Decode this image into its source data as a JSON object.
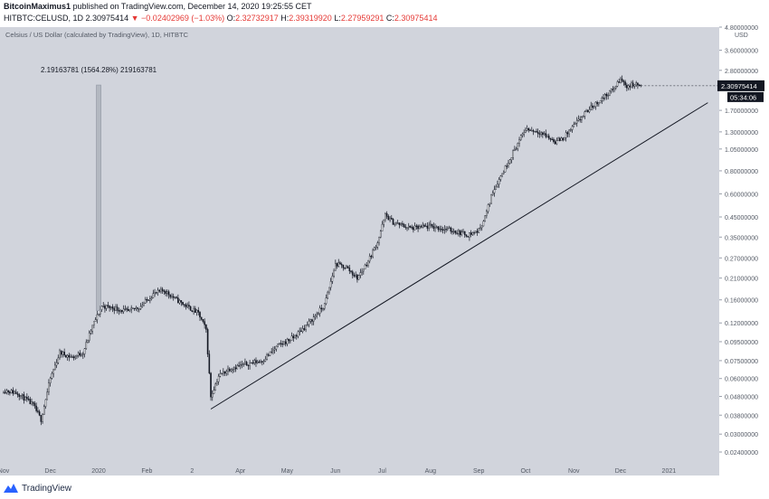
{
  "header": {
    "publisher": "BitcoinMaximus1",
    "published_text": "published on TradingView.com, December 14, 2020 19:25:55 CET",
    "symbol": "HITBTC:CELUSD, 1D",
    "last": "2.30975414",
    "change": "−0.02402969 (−1.03%)",
    "ohlc": {
      "o_label": "O:",
      "o": "2.32732917",
      "h_label": "H:",
      "h": "2.39319920",
      "l_label": "L:",
      "l": "2.27959291",
      "c_label": "C:",
      "c": "2.30975414"
    }
  },
  "colors": {
    "plot_bg": "#d1d4dc",
    "candle": "#131722",
    "trendline": "#131722",
    "measure": "#9aa0ac",
    "price_tag_bg": "#131722",
    "header_red": "#e53935"
  },
  "chart_data": {
    "type": "candlestick",
    "title": "Celsius / US Dollar (calculated by TradingView), 1D, HITBTC",
    "y_scale": "log",
    "ylim": [
      0.0205,
      4.8
    ],
    "y_unit": "USD",
    "y_ticks": [
      {
        "v": 4.8,
        "label": "4.80000000"
      },
      {
        "v": 3.6,
        "label": "3.60000000"
      },
      {
        "v": 2.8,
        "label": "2.80000000"
      },
      {
        "v": 1.7,
        "label": "1.70000000"
      },
      {
        "v": 1.3,
        "label": "1.30000000"
      },
      {
        "v": 1.05,
        "label": "1.05000000"
      },
      {
        "v": 0.8,
        "label": "0.80000000"
      },
      {
        "v": 0.6,
        "label": "0.60000000"
      },
      {
        "v": 0.45,
        "label": "0.45000000"
      },
      {
        "v": 0.35,
        "label": "0.35000000"
      },
      {
        "v": 0.27,
        "label": "0.27000000"
      },
      {
        "v": 0.21,
        "label": "0.21000000"
      },
      {
        "v": 0.16,
        "label": "0.16000000"
      },
      {
        "v": 0.12,
        "label": "0.12000000"
      },
      {
        "v": 0.095,
        "label": "0.09500000"
      },
      {
        "v": 0.075,
        "label": "0.07500000"
      },
      {
        "v": 0.06,
        "label": "0.06000000"
      },
      {
        "v": 0.048,
        "label": "0.04800000"
      },
      {
        "v": 0.038,
        "label": "0.03800000"
      },
      {
        "v": 0.03,
        "label": "0.03000000"
      },
      {
        "v": 0.024,
        "label": "0.02400000"
      }
    ],
    "x_range": [
      "2019-11-01",
      "2021-01-31"
    ],
    "x_ticks": [
      {
        "date": "2019-11-01",
        "label": "Nov"
      },
      {
        "date": "2019-12-01",
        "label": "Dec"
      },
      {
        "date": "2020-01-01",
        "label": "2020"
      },
      {
        "date": "2020-02-01",
        "label": "Feb"
      },
      {
        "date": "2020-03-01",
        "label": "2"
      },
      {
        "date": "2020-04-01",
        "label": "Apr"
      },
      {
        "date": "2020-05-01",
        "label": "May"
      },
      {
        "date": "2020-06-01",
        "label": "Jun"
      },
      {
        "date": "2020-07-01",
        "label": "Jul"
      },
      {
        "date": "2020-08-01",
        "label": "Aug"
      },
      {
        "date": "2020-09-01",
        "label": "Sep"
      },
      {
        "date": "2020-10-01",
        "label": "Oct"
      },
      {
        "date": "2020-11-01",
        "label": "Nov"
      },
      {
        "date": "2020-12-01",
        "label": "Dec"
      },
      {
        "date": "2021-01-01",
        "label": "2021"
      }
    ],
    "price_path": [
      [
        "2019-11-01",
        0.052
      ],
      [
        "2019-11-10",
        0.05
      ],
      [
        "2019-11-20",
        0.043
      ],
      [
        "2019-11-25",
        0.036
      ],
      [
        "2019-12-01",
        0.06
      ],
      [
        "2019-12-07",
        0.083
      ],
      [
        "2019-12-15",
        0.078
      ],
      [
        "2019-12-22",
        0.083
      ],
      [
        "2019-12-28",
        0.115
      ],
      [
        "2020-01-03",
        0.148
      ],
      [
        "2020-01-10",
        0.145
      ],
      [
        "2020-01-20",
        0.138
      ],
      [
        "2020-01-28",
        0.148
      ],
      [
        "2020-02-05",
        0.172
      ],
      [
        "2020-02-12",
        0.18
      ],
      [
        "2020-02-20",
        0.16
      ],
      [
        "2020-02-28",
        0.145
      ],
      [
        "2020-03-05",
        0.135
      ],
      [
        "2020-03-10",
        0.11
      ],
      [
        "2020-03-13",
        0.048
      ],
      [
        "2020-03-18",
        0.062
      ],
      [
        "2020-03-25",
        0.068
      ],
      [
        "2020-04-05",
        0.072
      ],
      [
        "2020-04-15",
        0.075
      ],
      [
        "2020-04-25",
        0.09
      ],
      [
        "2020-05-05",
        0.1
      ],
      [
        "2020-05-15",
        0.12
      ],
      [
        "2020-05-25",
        0.15
      ],
      [
        "2020-06-01",
        0.25
      ],
      [
        "2020-06-08",
        0.24
      ],
      [
        "2020-06-15",
        0.21
      ],
      [
        "2020-06-22",
        0.26
      ],
      [
        "2020-06-28",
        0.33
      ],
      [
        "2020-07-03",
        0.46
      ],
      [
        "2020-07-08",
        0.42
      ],
      [
        "2020-07-20",
        0.39
      ],
      [
        "2020-08-01",
        0.4
      ],
      [
        "2020-08-15",
        0.38
      ],
      [
        "2020-08-25",
        0.36
      ],
      [
        "2020-09-01",
        0.38
      ],
      [
        "2020-09-05",
        0.45
      ],
      [
        "2020-09-10",
        0.62
      ],
      [
        "2020-09-20",
        0.9
      ],
      [
        "2020-10-01",
        1.35
      ],
      [
        "2020-10-10",
        1.3
      ],
      [
        "2020-10-20",
        1.15
      ],
      [
        "2020-10-25",
        1.2
      ],
      [
        "2020-11-01",
        1.4
      ],
      [
        "2020-11-10",
        1.7
      ],
      [
        "2020-11-20",
        2.0
      ],
      [
        "2020-11-26",
        2.2
      ],
      [
        "2020-12-01",
        2.5
      ],
      [
        "2020-12-05",
        2.3
      ],
      [
        "2020-12-10",
        2.35
      ],
      [
        "2020-12-14",
        2.31
      ]
    ],
    "trendline": {
      "from": [
        "2020-03-13",
        0.041
      ],
      "to": [
        "2021-01-26",
        1.87
      ]
    },
    "measure": {
      "label": "2.19163781 (1564.28%) 219163781",
      "date": "2020-01-01",
      "from_price": 0.14,
      "to_price": 2.33
    },
    "last_price": {
      "label": "2.30975414",
      "countdown": "05:34:06",
      "value": 2.30975414
    }
  },
  "footer": {
    "brand": "TradingView"
  }
}
